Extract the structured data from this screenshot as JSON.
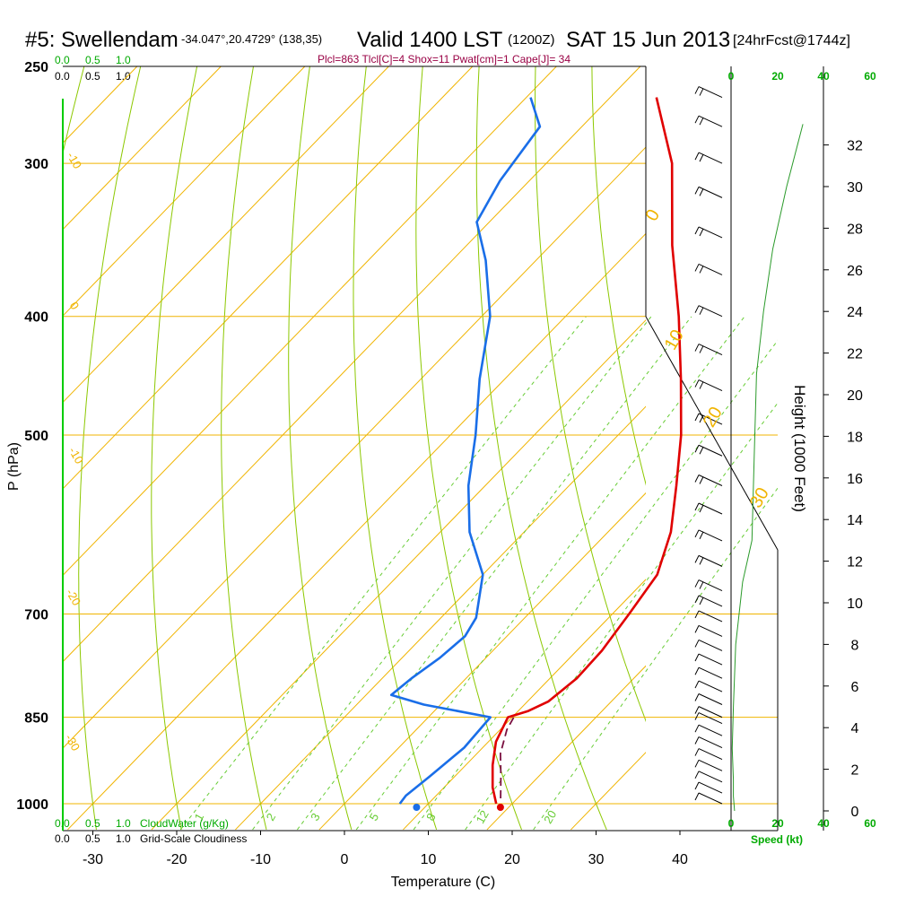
{
  "title": {
    "station": "#5: Swellendam",
    "location": "-34.047°,20.4729° (138,35)",
    "valid": "Valid 1400 LST",
    "zulu": "(1200Z)",
    "date": "SAT 15 Jun 2013",
    "forecast": "[24hrFcst@1744z]"
  },
  "indices_line": "Plcl=863 Tlcl[C]=4 Shox=11 Pwat[cm]=1 Cape[J]= 34",
  "colors": {
    "isotherm": "#f0b400",
    "dry_adiabat": "#8cc800",
    "mixing_ratio": "#66cc33",
    "temperature": "#e00000",
    "dewpoint": "#1a6ee8",
    "parcel": "#7a1040",
    "height": "#2a9a2a",
    "green_text": "#00aa00",
    "indices": "#990044"
  },
  "chart_data": {
    "type": "line",
    "xlabel": "Temperature (C)",
    "ylabel": "P (hPa)",
    "right_label": "Height (1000 Feet)",
    "x_ticks": [
      "-30",
      "-20",
      "-10",
      "0",
      "10",
      "20",
      "30",
      "40"
    ],
    "x_tick_values": [
      -30,
      -20,
      -10,
      0,
      10,
      20,
      30,
      40
    ],
    "p_ticks": [
      "250",
      "300",
      "400",
      "500",
      "700",
      "850",
      "1000"
    ],
    "p_tick_values": [
      250,
      300,
      400,
      500,
      700,
      850,
      1000
    ],
    "height_ticks": [
      "32",
      "30",
      "28",
      "26",
      "24",
      "22",
      "20",
      "18",
      "16",
      "14",
      "12",
      "10",
      "8",
      "6",
      "4",
      "2",
      "0"
    ],
    "height_tick_values": [
      32,
      30,
      28,
      26,
      24,
      22,
      20,
      18,
      16,
      14,
      12,
      10,
      8,
      6,
      4,
      2,
      0
    ],
    "isotherm_labels": [
      {
        "text": "0",
        "t": 0,
        "p": 400
      },
      {
        "text": "10",
        "t": 10,
        "p": 400
      },
      {
        "text": "20",
        "t": 20,
        "p": 500
      },
      {
        "text": "30",
        "t": 30,
        "p": 500
      },
      {
        "text": "-10",
        "t": -10,
        "p": 300
      },
      {
        "text": "0",
        "t": 0,
        "p": 400
      },
      {
        "text": "-10",
        "t": -10,
        "p": 530
      },
      {
        "text": "-20",
        "t": -20,
        "p": 690
      },
      {
        "text": "-30",
        "t": -30,
        "p": 890
      }
    ],
    "mixing_ratio_labels": [
      "1",
      "2",
      "3",
      "5",
      "8",
      "12",
      "20"
    ],
    "mixing_ratio_values": [
      1,
      2,
      3,
      5,
      8,
      12,
      20
    ],
    "series": [
      {
        "name": "Temperature",
        "points": [
          {
            "t": 18.1,
            "p": 1000
          },
          {
            "t": 15.8,
            "p": 970
          },
          {
            "t": 13.2,
            "p": 930
          },
          {
            "t": 10.9,
            "p": 890
          },
          {
            "t": 9.5,
            "p": 850
          },
          {
            "t": 11.2,
            "p": 840
          },
          {
            "t": 12.5,
            "p": 825
          },
          {
            "t": 13.2,
            "p": 790
          },
          {
            "t": 13.0,
            "p": 750
          },
          {
            "t": 12.0,
            "p": 700
          },
          {
            "t": 10.8,
            "p": 650
          },
          {
            "t": 7.5,
            "p": 600
          },
          {
            "t": 2.8,
            "p": 550
          },
          {
            "t": -2.5,
            "p": 500
          },
          {
            "t": -9.0,
            "p": 450
          },
          {
            "t": -16.5,
            "p": 400
          },
          {
            "t": -25.5,
            "p": 350
          },
          {
            "t": -35.0,
            "p": 300
          },
          {
            "t": -44.5,
            "p": 265
          }
        ]
      },
      {
        "name": "Dewpoint",
        "points": [
          {
            "t": 6.6,
            "p": 1000
          },
          {
            "t": 6.4,
            "p": 985
          },
          {
            "t": 7.0,
            "p": 950
          },
          {
            "t": 7.8,
            "p": 900
          },
          {
            "t": 7.4,
            "p": 850
          },
          {
            "t": -2.0,
            "p": 830
          },
          {
            "t": -7.0,
            "p": 815
          },
          {
            "t": -6.5,
            "p": 790
          },
          {
            "t": -5.5,
            "p": 760
          },
          {
            "t": -5.0,
            "p": 730
          },
          {
            "t": -5.8,
            "p": 705
          },
          {
            "t": -10.0,
            "p": 650
          },
          {
            "t": -16.5,
            "p": 600
          },
          {
            "t": -22.0,
            "p": 550
          },
          {
            "t": -27.0,
            "p": 500
          },
          {
            "t": -33.0,
            "p": 450
          },
          {
            "t": -39.0,
            "p": 400
          },
          {
            "t": -46.0,
            "p": 360
          },
          {
            "t": -51.5,
            "p": 335
          },
          {
            "t": -53.5,
            "p": 310
          },
          {
            "t": -55.0,
            "p": 280
          },
          {
            "t": -59.5,
            "p": 265
          }
        ]
      },
      {
        "name": "Parcel",
        "points": [
          {
            "t": 18.0,
            "p": 990
          },
          {
            "t": 15.5,
            "p": 950
          },
          {
            "t": 12.8,
            "p": 910
          },
          {
            "t": 10.8,
            "p": 870
          },
          {
            "t": 10.2,
            "p": 850
          }
        ]
      }
    ],
    "surface_points": [
      {
        "name": "surface-temperature",
        "t": 18.6,
        "p": 1000
      },
      {
        "name": "surface-dewpoint",
        "t": 8.6,
        "p": 1000
      }
    ],
    "height_profile_kt": [
      {
        "s": 1.5,
        "h": 0.0
      },
      {
        "s": 1.0,
        "h": 0.7
      },
      {
        "s": 1.0,
        "h": 1.5
      },
      {
        "s": 0.5,
        "h": 3.0
      },
      {
        "s": 1.0,
        "h": 5.0
      },
      {
        "s": 2.0,
        "h": 8.0
      },
      {
        "s": 5.0,
        "h": 11.0
      },
      {
        "s": 9.0,
        "h": 13.0
      },
      {
        "s": 10.0,
        "h": 17.0
      },
      {
        "s": 11.0,
        "h": 21.0
      },
      {
        "s": 14.0,
        "h": 24.0
      },
      {
        "s": 18.0,
        "h": 27.0
      },
      {
        "s": 24.0,
        "h": 30.0
      },
      {
        "s": 31.0,
        "h": 33.0
      }
    ],
    "wind_levels_hpa": [
      1000,
      980,
      960,
      940,
      920,
      900,
      880,
      860,
      850,
      830,
      810,
      790,
      770,
      750,
      730,
      710,
      690,
      670,
      640,
      610,
      580,
      550,
      520,
      490,
      460,
      430,
      400,
      370,
      345,
      320,
      300,
      280,
      265
    ]
  },
  "top_scale_green": [
    "0.0",
    "0.5",
    "1.0"
  ],
  "top_scale_black": [
    "0.0",
    "0.5",
    "1.0"
  ],
  "bottom_scale_green": [
    "0.0",
    "0.5",
    "1.0"
  ],
  "bottom_scale_black": [
    "0.0",
    "0.5",
    "1.0"
  ],
  "cloud_water_label": "CloudWater (g/Kg)",
  "cloudiness_label": "Grid-Scale Cloudiness",
  "speed_top_ticks": [
    "0",
    "20",
    "40",
    "60"
  ],
  "speed_bottom_ticks": [
    "0",
    "20",
    "40",
    "60"
  ],
  "speed_label": "Speed (kt)"
}
